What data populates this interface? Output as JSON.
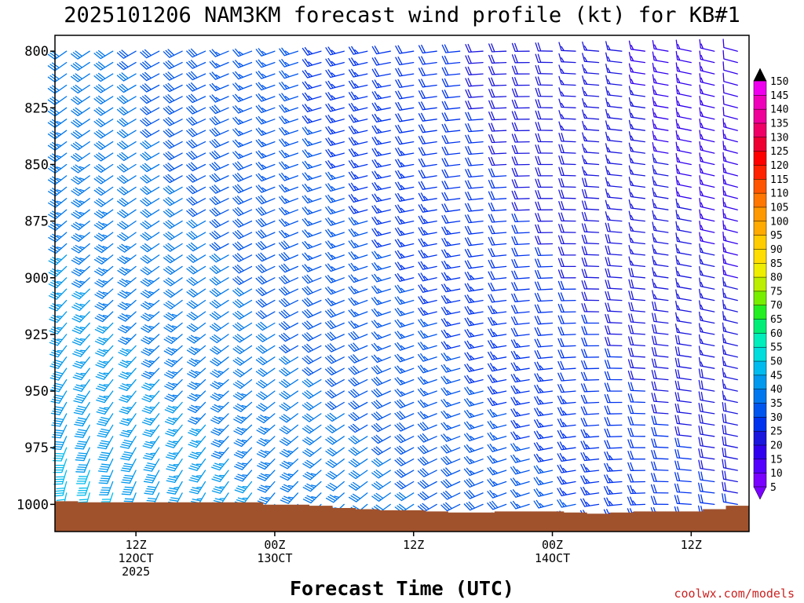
{
  "chart_data": {
    "type": "wind-barb-time-height",
    "title": "2025101206 NAM3KM forecast wind profile (kt) for KB#1",
    "xlabel": "Forecast Time (UTC)",
    "ylabel": "",
    "units": "kt",
    "y_axis": {
      "range": [
        1012,
        793
      ],
      "ticks": [
        800,
        825,
        850,
        875,
        900,
        925,
        950,
        975,
        1000
      ],
      "levels": [
        800,
        805,
        810,
        815,
        820,
        825,
        830,
        835,
        840,
        845,
        850,
        855,
        860,
        865,
        870,
        875,
        880,
        885,
        890,
        895,
        900,
        905,
        910,
        915,
        920,
        925,
        930,
        935,
        940,
        945,
        950,
        955,
        960,
        965,
        970,
        975,
        980,
        985,
        990,
        995,
        1000,
        1005,
        1010
      ]
    },
    "x_axis": {
      "range_hours": [
        -1,
        59
      ],
      "times_hours": [
        0,
        2,
        4,
        6,
        8,
        10,
        12,
        14,
        16,
        18,
        20,
        22,
        24,
        26,
        28,
        30,
        32,
        34,
        36,
        38,
        40,
        42,
        44,
        46,
        48,
        50,
        52,
        54,
        56,
        58
      ],
      "ticks": [
        {
          "hour": 6,
          "lines": [
            "12Z",
            "12OCT",
            "2025"
          ]
        },
        {
          "hour": 18,
          "lines": [
            "00Z",
            "13OCT"
          ]
        },
        {
          "hour": 30,
          "lines": [
            "12Z"
          ]
        },
        {
          "hour": 42,
          "lines": [
            "00Z",
            "14OCT"
          ]
        },
        {
          "hour": 54,
          "lines": [
            "12Z"
          ]
        }
      ]
    },
    "wind_field_model": {
      "surface_pressure_hpa": [
        1000,
        1000.5,
        1000.5,
        1000.5,
        1000.5,
        1000.5,
        1000.5,
        1000.5,
        1000.5,
        1001.5,
        1001.5,
        1002,
        1003,
        1003.5,
        1004,
        1004,
        1004.5,
        1005,
        1005,
        1004.5,
        1004.5,
        1004.5,
        1005,
        1005.5,
        1005,
        1004.5,
        1004.5,
        1004.5,
        1003.5,
        1002
      ],
      "direction_deg": {
        "upper_start": 235,
        "upper_end": 285,
        "lower_start": 190,
        "lower_end": 280
      },
      "speed_kt": {
        "upper_start": 32,
        "upper_end": 12,
        "lower_start": 42,
        "lower_end": 20
      }
    },
    "colorbar": {
      "levels": [
        5,
        10,
        15,
        20,
        25,
        30,
        35,
        40,
        45,
        50,
        55,
        60,
        65,
        70,
        75,
        80,
        85,
        90,
        95,
        100,
        105,
        110,
        115,
        120,
        125,
        130,
        135,
        140,
        145,
        150
      ],
      "colors": [
        "#7a00ff",
        "#5500ff",
        "#3000ee",
        "#1a16dd",
        "#0033ee",
        "#0055ee",
        "#0077ee",
        "#0099ee",
        "#00bbee",
        "#00dddd",
        "#00eebb",
        "#00ee77",
        "#22ee22",
        "#77ee00",
        "#bbee00",
        "#eeee00",
        "#ffdd00",
        "#ffcc00",
        "#ffaa00",
        "#ff9900",
        "#ff7700",
        "#ff5500",
        "#ff2200",
        "#ff0000",
        "#ee0033",
        "#ee0066",
        "#ee0099",
        "#ee00bb",
        "#ee00ee",
        "#000000"
      ]
    },
    "ground_color": "#a0522d"
  },
  "credit": "coolwx.com/models"
}
